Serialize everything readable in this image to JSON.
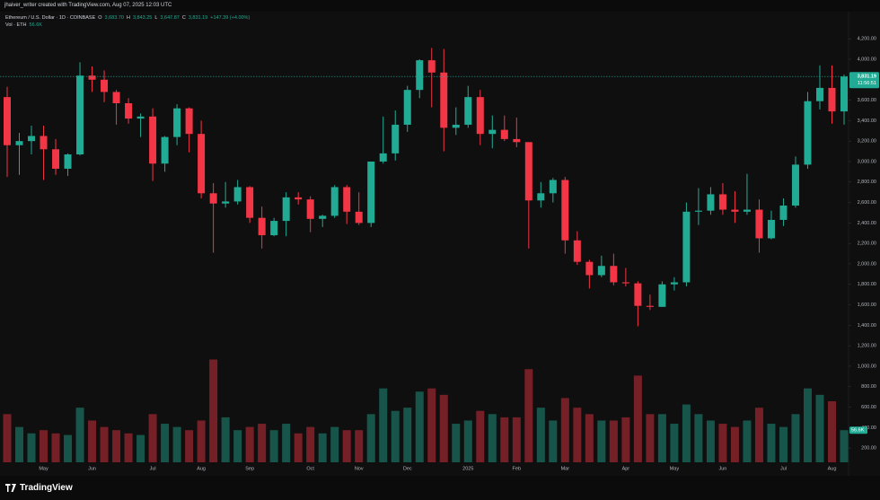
{
  "header": {
    "attribution": "jhaiver_writer created with TradingView.com, Aug 07, 2025 12:03 UTC",
    "symbol": "Ethereum / U.S. Dollar · 1D · COINBASE",
    "ohlc": [
      {
        "label": "O",
        "value": "3,683.70"
      },
      {
        "label": "H",
        "value": "3,843.25"
      },
      {
        "label": "L",
        "value": "3,647.87"
      },
      {
        "label": "C",
        "value": "3,831.19"
      }
    ],
    "change": "+147.39 (+4.00%)",
    "volume_label": "Vol · ETH",
    "volume_value": "56.6K"
  },
  "chart_data": {
    "type": "candlestick",
    "categories": [
      null,
      null,
      null,
      "May",
      null,
      null,
      null,
      "Jun",
      null,
      null,
      null,
      null,
      "Jul",
      null,
      null,
      null,
      "Aug",
      null,
      null,
      null,
      "Sep",
      null,
      null,
      null,
      null,
      "Oct",
      null,
      null,
      null,
      "Nov",
      null,
      null,
      null,
      "Dec",
      null,
      null,
      null,
      null,
      "2025",
      null,
      null,
      null,
      "Feb",
      null,
      null,
      null,
      "Mar",
      null,
      null,
      null,
      null,
      "Apr",
      null,
      null,
      null,
      "May",
      null,
      null,
      null,
      "Jun",
      null,
      null,
      null,
      null,
      "Jul",
      null,
      null,
      null,
      "Aug",
      null
    ],
    "open": [
      3630,
      3160,
      3200,
      3250,
      3120,
      2930,
      3070,
      3840,
      3800,
      3680,
      3570,
      3420,
      3440,
      2980,
      3240,
      3520,
      3270,
      2690,
      2590,
      2610,
      2750,
      2450,
      2280,
      2420,
      2650,
      2630,
      2440,
      2470,
      2750,
      2510,
      2400,
      3000,
      3080,
      3360,
      3700,
      3990,
      3870,
      3330,
      3360,
      3630,
      3270,
      3310,
      3220,
      3190,
      2620,
      2690,
      2820,
      2230,
      2020,
      1890,
      1980,
      1820,
      1810,
      1590,
      1580,
      1800,
      1820,
      2510,
      2520,
      2680,
      2530,
      2510,
      2530,
      2250,
      2430,
      2570,
      2970,
      3590,
      3720,
      3490
    ],
    "high": [
      3730,
      3280,
      3350,
      3350,
      3220,
      3080,
      3970,
      3930,
      3890,
      3700,
      3620,
      3470,
      3520,
      3250,
      3560,
      3530,
      3400,
      2790,
      2800,
      2820,
      2760,
      2560,
      2450,
      2700,
      2700,
      2660,
      2480,
      2770,
      2770,
      2700,
      3000,
      3440,
      3500,
      3740,
      4000,
      4110,
      4100,
      3530,
      3740,
      3700,
      3450,
      3450,
      3430,
      3190,
      2800,
      2840,
      2850,
      2320,
      2040,
      2080,
      2100,
      1960,
      1830,
      1700,
      1830,
      1870,
      2600,
      2740,
      2750,
      2790,
      2710,
      2880,
      2630,
      2520,
      2640,
      3050,
      3680,
      3940,
      3940,
      3850
    ],
    "low": [
      2850,
      2870,
      3070,
      2820,
      2870,
      2860,
      3060,
      3680,
      3580,
      3360,
      3370,
      3240,
      2810,
      2900,
      3160,
      3090,
      2640,
      2110,
      2550,
      2580,
      2400,
      2150,
      2270,
      2270,
      2580,
      2310,
      2360,
      2450,
      2390,
      2380,
      2360,
      2980,
      3010,
      3290,
      3620,
      3530,
      3100,
      3260,
      3330,
      3160,
      3130,
      3200,
      3140,
      2150,
      2550,
      2600,
      2100,
      1990,
      1760,
      1870,
      1790,
      1780,
      1390,
      1550,
      1580,
      1740,
      1780,
      2380,
      2480,
      2480,
      2400,
      2480,
      2110,
      2240,
      2370,
      2550,
      2930,
      3510,
      3370,
      3360
    ],
    "close": [
      3160,
      3200,
      3250,
      3120,
      2930,
      3070,
      3840,
      3800,
      3680,
      3570,
      3420,
      3440,
      2980,
      3240,
      3520,
      3270,
      2690,
      2590,
      2610,
      2750,
      2450,
      2280,
      2420,
      2650,
      2630,
      2440,
      2470,
      2750,
      2510,
      2400,
      3000,
      3080,
      3360,
      3700,
      3990,
      3870,
      3330,
      3360,
      3630,
      3270,
      3310,
      3220,
      3190,
      2620,
      2690,
      2820,
      2230,
      2020,
      1890,
      1980,
      1820,
      1810,
      1590,
      1580,
      1800,
      1820,
      2510,
      2520,
      2680,
      2530,
      2510,
      2530,
      2250,
      2430,
      2570,
      2970,
      3590,
      3720,
      3490,
      3831.19
    ],
    "volume": [
      1500,
      1100,
      900,
      1000,
      900,
      850,
      1700,
      1300,
      1100,
      1000,
      900,
      850,
      1500,
      1200,
      1100,
      1000,
      1300,
      3200,
      1400,
      1000,
      1100,
      1200,
      1000,
      1200,
      900,
      1100,
      900,
      1100,
      1000,
      1000,
      1500,
      2300,
      1600,
      1700,
      2200,
      2300,
      2100,
      1200,
      1300,
      1600,
      1500,
      1400,
      1400,
      2900,
      1700,
      1300,
      2000,
      1700,
      1500,
      1300,
      1300,
      1400,
      2700,
      1500,
      1500,
      1200,
      1800,
      1500,
      1300,
      1200,
      1100,
      1300,
      1700,
      1200,
      1100,
      1500,
      2300,
      2100,
      1900,
      1000
    ],
    "ylim": [
      61,
      4456
    ],
    "yticks": [
      {
        "value": 4200,
        "label": "4,200.00"
      },
      {
        "value": 4000,
        "label": "4,000.00"
      },
      {
        "value": 3600,
        "label": "3,600.00"
      },
      {
        "value": 3400,
        "label": "3,400.00"
      },
      {
        "value": 3200,
        "label": "3,200.00"
      },
      {
        "value": 3000,
        "label": "3,000.00"
      },
      {
        "value": 2800,
        "label": "2,800.00"
      },
      {
        "value": 2600,
        "label": "2,600.00"
      },
      {
        "value": 2400,
        "label": "2,400.00"
      },
      {
        "value": 2200,
        "label": "2,200.00"
      },
      {
        "value": 2000,
        "label": "2,000.00"
      },
      {
        "value": 1800,
        "label": "1,800.00"
      },
      {
        "value": 1600,
        "label": "1,600.00"
      },
      {
        "value": 1400,
        "label": "1,400.00"
      },
      {
        "value": 1200,
        "label": "1,200.00"
      },
      {
        "value": 1000,
        "label": "1,000.00"
      },
      {
        "value": 800,
        "label": "800.00"
      },
      {
        "value": 600,
        "label": "600.00"
      },
      {
        "value": 400,
        "label": "400.00"
      },
      {
        "value": 200,
        "label": "200.00"
      }
    ],
    "volume_ylim": [
      0,
      14000
    ],
    "up_color": "#22ab94",
    "down_color": "#f23645",
    "last_price_label": "3,831.19",
    "countdown": "11:56:51"
  },
  "footer": {
    "brand": "TradingView"
  }
}
